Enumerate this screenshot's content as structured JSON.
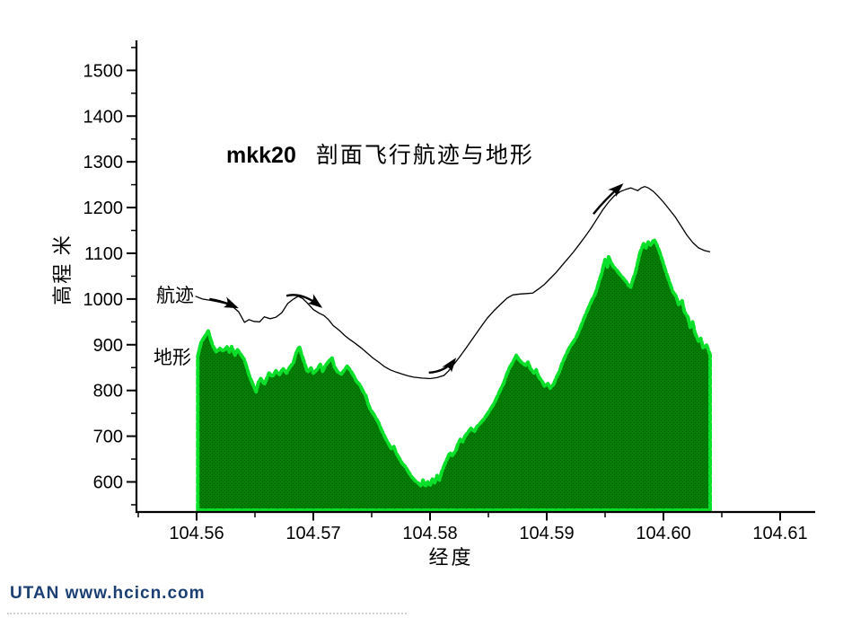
{
  "footer": {
    "text": "UTAN  www.hcicn.com",
    "color": "#1b3f73"
  },
  "chart_data": {
    "type": "area+line",
    "title_prefix": "mkk20",
    "title_main": "剖面飞行航迹与地形",
    "xlabel": "经度",
    "ylabel": "高程 米",
    "x_axis": {
      "origin": 104.56,
      "tick_labels": [
        "104.56",
        "104.57",
        "104.58",
        "104.59",
        "104.60",
        "104.61"
      ],
      "tick_values": [
        104.56,
        104.57,
        104.58,
        104.59,
        104.6,
        104.61
      ],
      "minor_tick_values": [
        104.555,
        104.565,
        104.575,
        104.585,
        104.595,
        104.605
      ]
    },
    "y_axis": {
      "origin": 600,
      "tick_labels": [
        "600",
        "700",
        "800",
        "900",
        "1000",
        "1100",
        "1200",
        "1300",
        "1400",
        "1500"
      ],
      "tick_values": [
        600,
        700,
        800,
        900,
        1000,
        1100,
        1200,
        1300,
        1400,
        1500
      ],
      "minor_tick_values": [
        550,
        650,
        750,
        850,
        950,
        1050,
        1150,
        1250,
        1350,
        1450,
        1550
      ]
    },
    "series": [
      {
        "name": "terrain",
        "label": "地形",
        "type": "area",
        "fill": "#047d04",
        "fill_dark": "#025c02",
        "edge": "#0ae02a",
        "points": [
          [
            104.5601,
            875
          ],
          [
            104.5604,
            906
          ],
          [
            104.5607,
            918
          ],
          [
            104.561,
            930
          ],
          [
            104.5612,
            912
          ],
          [
            104.5614,
            897
          ],
          [
            104.5617,
            884
          ],
          [
            104.562,
            892
          ],
          [
            104.5623,
            886
          ],
          [
            104.5626,
            895
          ],
          [
            104.5628,
            884
          ],
          [
            104.563,
            896
          ],
          [
            104.5633,
            877
          ],
          [
            104.5635,
            889
          ],
          [
            104.5637,
            882
          ],
          [
            104.5641,
            867
          ],
          [
            104.5645,
            833
          ],
          [
            104.5648,
            815
          ],
          [
            104.5651,
            797
          ],
          [
            104.5653,
            818
          ],
          [
            104.5655,
            826
          ],
          [
            104.5658,
            813
          ],
          [
            104.5662,
            838
          ],
          [
            104.5665,
            830
          ],
          [
            104.5668,
            843
          ],
          [
            104.5671,
            835
          ],
          [
            104.5674,
            848
          ],
          [
            104.5677,
            838
          ],
          [
            104.568,
            851
          ],
          [
            104.5683,
            861
          ],
          [
            104.5685,
            880
          ],
          [
            104.5688,
            896
          ],
          [
            104.569,
            878
          ],
          [
            104.5693,
            856
          ],
          [
            104.5695,
            840
          ],
          [
            104.5698,
            849
          ],
          [
            104.57,
            838
          ],
          [
            104.5703,
            845
          ],
          [
            104.5706,
            857
          ],
          [
            104.5708,
            842
          ],
          [
            104.571,
            853
          ],
          [
            104.5713,
            863
          ],
          [
            104.5716,
            871
          ],
          [
            104.5718,
            852
          ],
          [
            104.5721,
            840
          ],
          [
            104.5724,
            836
          ],
          [
            104.5727,
            846
          ],
          [
            104.5729,
            853
          ],
          [
            104.5732,
            843
          ],
          [
            104.5735,
            830
          ],
          [
            104.5737,
            820
          ],
          [
            104.574,
            812
          ],
          [
            104.5742,
            801
          ],
          [
            104.5745,
            788
          ],
          [
            104.5747,
            770
          ],
          [
            104.5749,
            758
          ],
          [
            104.5752,
            747
          ],
          [
            104.5754,
            738
          ],
          [
            104.5756,
            729
          ],
          [
            104.5758,
            716
          ],
          [
            104.5761,
            700
          ],
          [
            104.5763,
            690
          ],
          [
            104.5765,
            681
          ],
          [
            104.5767,
            672
          ],
          [
            104.5769,
            677
          ],
          [
            104.5771,
            663
          ],
          [
            104.5774,
            650
          ],
          [
            104.5776,
            641
          ],
          [
            104.5779,
            633
          ],
          [
            104.5781,
            624
          ],
          [
            104.5784,
            612
          ],
          [
            104.5787,
            603
          ],
          [
            104.579,
            597
          ],
          [
            104.5792,
            592
          ],
          [
            104.5794,
            604
          ],
          [
            104.5796,
            590
          ],
          [
            104.5798,
            600
          ],
          [
            104.58,
            592
          ],
          [
            104.5802,
            606
          ],
          [
            104.5804,
            598
          ],
          [
            104.5806,
            614
          ],
          [
            104.5808,
            604
          ],
          [
            104.581,
            622
          ],
          [
            104.5813,
            641
          ],
          [
            104.5815,
            652
          ],
          [
            104.5817,
            664
          ],
          [
            104.5819,
            658
          ],
          [
            104.5822,
            668
          ],
          [
            104.5824,
            683
          ],
          [
            104.5826,
            693
          ],
          [
            104.5828,
            688
          ],
          [
            104.583,
            700
          ],
          [
            104.5833,
            710
          ],
          [
            104.5835,
            717
          ],
          [
            104.5838,
            710
          ],
          [
            104.584,
            720
          ],
          [
            104.5843,
            728
          ],
          [
            104.5846,
            737
          ],
          [
            104.5849,
            748
          ],
          [
            104.5852,
            760
          ],
          [
            104.5855,
            772
          ],
          [
            104.5857,
            783
          ],
          [
            104.586,
            800
          ],
          [
            104.5863,
            815
          ],
          [
            104.5865,
            830
          ],
          [
            104.5868,
            849
          ],
          [
            104.5871,
            862
          ],
          [
            104.5874,
            877
          ],
          [
            104.5876,
            868
          ],
          [
            104.5879,
            860
          ],
          [
            104.5882,
            855
          ],
          [
            104.5884,
            862
          ],
          [
            104.5886,
            848
          ],
          [
            104.5889,
            838
          ],
          [
            104.5891,
            845
          ],
          [
            104.5893,
            830
          ],
          [
            104.5896,
            820
          ],
          [
            104.5898,
            810
          ],
          [
            104.5901,
            815
          ],
          [
            104.5903,
            805
          ],
          [
            104.5906,
            814
          ],
          [
            104.5908,
            827
          ],
          [
            104.5911,
            842
          ],
          [
            104.5913,
            858
          ],
          [
            104.5916,
            875
          ],
          [
            104.5918,
            886
          ],
          [
            104.592,
            896
          ],
          [
            104.5923,
            907
          ],
          [
            104.5925,
            915
          ],
          [
            104.5928,
            932
          ],
          [
            104.593,
            945
          ],
          [
            104.5932,
            958
          ],
          [
            104.5935,
            976
          ],
          [
            104.5937,
            988
          ],
          [
            104.5939,
            999
          ],
          [
            104.5941,
            1008
          ],
          [
            104.5943,
            1022
          ],
          [
            104.5945,
            1040
          ],
          [
            104.5947,
            1055
          ],
          [
            104.5949,
            1077
          ],
          [
            104.595,
            1086
          ],
          [
            104.5952,
            1070
          ],
          [
            104.5953,
            1092
          ],
          [
            104.5955,
            1080
          ],
          [
            104.5957,
            1071
          ],
          [
            104.596,
            1063
          ],
          [
            104.5962,
            1056
          ],
          [
            104.5964,
            1050
          ],
          [
            104.5966,
            1044
          ],
          [
            104.5968,
            1038
          ],
          [
            104.597,
            1030
          ],
          [
            104.5972,
            1026
          ],
          [
            104.5974,
            1044
          ],
          [
            104.5976,
            1058
          ],
          [
            104.5978,
            1080
          ],
          [
            104.598,
            1102
          ],
          [
            104.5983,
            1121
          ],
          [
            104.5985,
            1112
          ],
          [
            104.5987,
            1125
          ],
          [
            104.5989,
            1118
          ],
          [
            104.5992,
            1130
          ],
          [
            104.5994,
            1120
          ],
          [
            104.5996,
            1108
          ],
          [
            104.5999,
            1085
          ],
          [
            104.6002,
            1060
          ],
          [
            104.6005,
            1038
          ],
          [
            104.6008,
            1016
          ],
          [
            104.6011,
            1005
          ],
          [
            104.6013,
            988
          ],
          [
            104.6016,
            996
          ],
          [
            104.6018,
            972
          ],
          [
            104.6021,
            960
          ],
          [
            104.6023,
            938
          ],
          [
            104.6025,
            950
          ],
          [
            104.6027,
            926
          ],
          [
            104.603,
            908
          ],
          [
            104.6032,
            914
          ],
          [
            104.6034,
            893
          ],
          [
            104.6037,
            899
          ],
          [
            104.604,
            878
          ]
        ]
      },
      {
        "name": "trajectory",
        "label": "航迹",
        "type": "line",
        "color": "#000000",
        "points": [
          [
            104.5599,
            1006
          ],
          [
            104.5605,
            1000
          ],
          [
            104.5612,
            997
          ],
          [
            104.5618,
            994
          ],
          [
            104.5625,
            990
          ],
          [
            104.5631,
            983
          ],
          [
            104.5636,
            972
          ],
          [
            104.5641,
            949
          ],
          [
            104.5645,
            955
          ],
          [
            104.5649,
            951
          ],
          [
            104.5654,
            950
          ],
          [
            104.5658,
            961
          ],
          [
            104.5663,
            957
          ],
          [
            104.5668,
            960
          ],
          [
            104.5673,
            970
          ],
          [
            104.5678,
            990
          ],
          [
            104.5683,
            1000
          ],
          [
            104.5687,
            1006
          ],
          [
            104.5691,
            1001
          ],
          [
            104.5695,
            991
          ],
          [
            104.57,
            977
          ],
          [
            104.5705,
            969
          ],
          [
            104.5709,
            964
          ],
          [
            104.5713,
            955
          ],
          [
            104.5717,
            942
          ],
          [
            104.5722,
            932
          ],
          [
            104.5727,
            920
          ],
          [
            104.5731,
            912
          ],
          [
            104.5736,
            903
          ],
          [
            104.5741,
            893
          ],
          [
            104.5746,
            882
          ],
          [
            104.5751,
            871
          ],
          [
            104.5756,
            862
          ],
          [
            104.5761,
            852
          ],
          [
            104.5766,
            845
          ],
          [
            104.5771,
            840
          ],
          [
            104.5776,
            836
          ],
          [
            104.5781,
            832
          ],
          [
            104.5786,
            829
          ],
          [
            104.5793,
            827
          ],
          [
            104.58,
            826
          ],
          [
            104.5806,
            828
          ],
          [
            104.5812,
            833
          ],
          [
            104.5816,
            843
          ],
          [
            104.582,
            856
          ],
          [
            104.5825,
            872
          ],
          [
            104.5831,
            893
          ],
          [
            104.5837,
            915
          ],
          [
            104.5843,
            937
          ],
          [
            104.5849,
            958
          ],
          [
            104.5855,
            975
          ],
          [
            104.5861,
            990
          ],
          [
            104.5866,
            1002
          ],
          [
            104.5871,
            1009
          ],
          [
            104.5877,
            1011
          ],
          [
            104.5883,
            1012
          ],
          [
            104.5888,
            1013
          ],
          [
            104.5893,
            1022
          ],
          [
            104.5898,
            1032
          ],
          [
            104.5903,
            1045
          ],
          [
            104.5908,
            1058
          ],
          [
            104.5913,
            1073
          ],
          [
            104.5918,
            1088
          ],
          [
            104.5923,
            1103
          ],
          [
            104.5928,
            1120
          ],
          [
            104.5933,
            1137
          ],
          [
            104.5938,
            1155
          ],
          [
            104.5943,
            1175
          ],
          [
            104.5948,
            1195
          ],
          [
            104.5953,
            1212
          ],
          [
            104.5958,
            1226
          ],
          [
            104.5963,
            1235
          ],
          [
            104.5968,
            1240
          ],
          [
            104.5972,
            1243
          ],
          [
            104.5975,
            1240
          ],
          [
            104.5978,
            1237
          ],
          [
            104.5981,
            1243
          ],
          [
            104.5984,
            1246
          ],
          [
            104.5987,
            1243
          ],
          [
            104.5991,
            1236
          ],
          [
            104.5995,
            1226
          ],
          [
            104.6,
            1212
          ],
          [
            104.6005,
            1196
          ],
          [
            104.601,
            1180
          ],
          [
            104.6015,
            1160
          ],
          [
            104.602,
            1140
          ],
          [
            104.6025,
            1124
          ],
          [
            104.603,
            1112
          ],
          [
            104.6035,
            1106
          ],
          [
            104.604,
            1103
          ]
        ]
      }
    ],
    "arrows": {
      "color": "#000000",
      "paths": [
        [
          [
            104.5611,
            1000
          ],
          [
            104.5622,
            996
          ],
          [
            104.5634,
            982
          ]
        ],
        [
          [
            104.5677,
            1007
          ],
          [
            104.569,
            1016
          ],
          [
            104.5706,
            984
          ]
        ],
        [
          [
            104.5799,
            839
          ],
          [
            104.5813,
            841
          ],
          [
            104.5821,
            867
          ]
        ],
        [
          [
            104.594,
            1186
          ],
          [
            104.595,
            1218
          ],
          [
            104.5964,
            1249
          ]
        ]
      ]
    }
  }
}
